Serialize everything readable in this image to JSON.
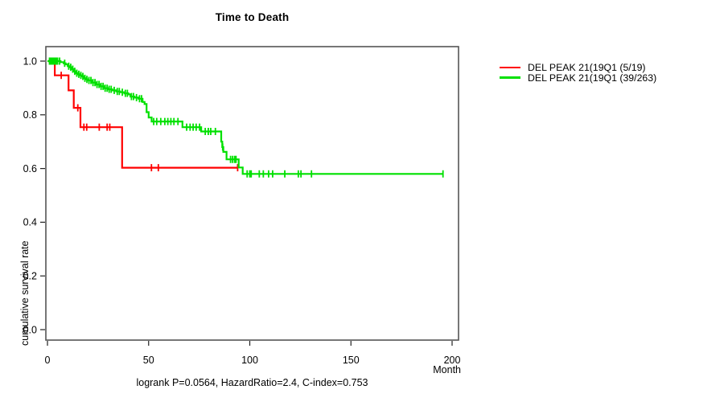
{
  "chart_data": {
    "type": "line",
    "subtype": "kaplan-meier-step",
    "title": "Time to Death",
    "xlabel": "Month",
    "ylabel": "cumulative survival rate",
    "annotation": "logrank P=0.0564, HazardRatio=2.4, C-index=0.753",
    "xlim": [
      0,
      200
    ],
    "ylim": [
      0.0,
      1.0
    ],
    "grid": false,
    "legend_position": "top-right-outside",
    "xticks": [
      0,
      50,
      100,
      150,
      200
    ],
    "xtick_labels": [
      "0",
      "50",
      "100",
      "150",
      "200"
    ],
    "yticks": [
      0.0,
      0.2,
      0.4,
      0.6,
      0.8,
      1.0
    ],
    "ytick_labels": [
      "0.0",
      "0.2",
      "0.4",
      "0.6",
      "0.8",
      "1.0"
    ],
    "frame_color": "#555555",
    "series": [
      {
        "name": "DEL PEAK 21(19Q1 (5/19)",
        "color": "#ff0000",
        "end_time": 94,
        "steps": [
          [
            0,
            1.0
          ],
          [
            3.6,
            0.947
          ],
          [
            10.4,
            0.891
          ],
          [
            13.0,
            0.826
          ],
          [
            16.3,
            0.754
          ],
          [
            36.9,
            0.603
          ]
        ],
        "censor_times": [
          6.8,
          15.0,
          18.0,
          19.4,
          25.6,
          29.5,
          30.8,
          51.4,
          54.8,
          94
        ]
      },
      {
        "name": "DEL PEAK 21(19Q1 (39/263)",
        "color": "#00e000",
        "end_time": 195.5,
        "steps": [
          [
            0,
            1.0
          ],
          [
            6.5,
            0.996
          ],
          [
            8,
            0.992
          ],
          [
            9,
            0.988
          ],
          [
            10,
            0.981
          ],
          [
            11,
            0.977
          ],
          [
            12,
            0.97
          ],
          [
            13,
            0.962
          ],
          [
            14,
            0.955
          ],
          [
            15,
            0.951
          ],
          [
            16,
            0.947
          ],
          [
            17,
            0.943
          ],
          [
            18,
            0.936
          ],
          [
            19,
            0.932
          ],
          [
            20,
            0.928
          ],
          [
            22,
            0.92
          ],
          [
            24,
            0.913
          ],
          [
            26,
            0.906
          ],
          [
            28,
            0.899
          ],
          [
            30,
            0.895
          ],
          [
            32,
            0.891
          ],
          [
            34,
            0.887
          ],
          [
            36,
            0.884
          ],
          [
            38,
            0.88
          ],
          [
            40,
            0.876
          ],
          [
            41,
            0.868
          ],
          [
            43,
            0.864
          ],
          [
            45,
            0.86
          ],
          [
            47,
            0.848
          ],
          [
            48,
            0.84
          ],
          [
            49,
            0.81
          ],
          [
            50,
            0.79
          ],
          [
            51.5,
            0.775
          ],
          [
            66.7,
            0.754
          ],
          [
            76,
            0.738
          ],
          [
            85.9,
            0.7
          ],
          [
            86.4,
            0.68
          ],
          [
            86.9,
            0.662
          ],
          [
            88.5,
            0.634
          ],
          [
            94.5,
            0.604
          ],
          [
            96.5,
            0.58
          ]
        ],
        "censor_times": [
          1,
          1.5,
          2,
          2.5,
          3,
          3.5,
          4,
          4.5,
          5,
          6,
          8.5,
          10.5,
          11.5,
          12.5,
          13.5,
          14.5,
          15.5,
          16.5,
          17.5,
          18.5,
          19.5,
          20.5,
          21.5,
          22.5,
          23.5,
          24.5,
          25.5,
          26.5,
          27.5,
          28.5,
          29.5,
          30.5,
          31.5,
          33,
          34.5,
          35.5,
          37,
          38.5,
          39.5,
          41.5,
          42.5,
          44,
          45.5,
          46.5,
          52.5,
          54,
          56,
          58,
          59.5,
          61,
          62.5,
          64.5,
          68.8,
          70.5,
          72,
          73.5,
          75.2,
          78,
          79.5,
          80.7,
          83,
          86.6,
          90.5,
          91.5,
          92.5,
          93.2,
          98.7,
          100,
          100.7,
          104.7,
          106.7,
          109.3,
          111.3,
          117.3,
          124,
          125.3,
          130.5,
          195.5
        ]
      }
    ]
  }
}
